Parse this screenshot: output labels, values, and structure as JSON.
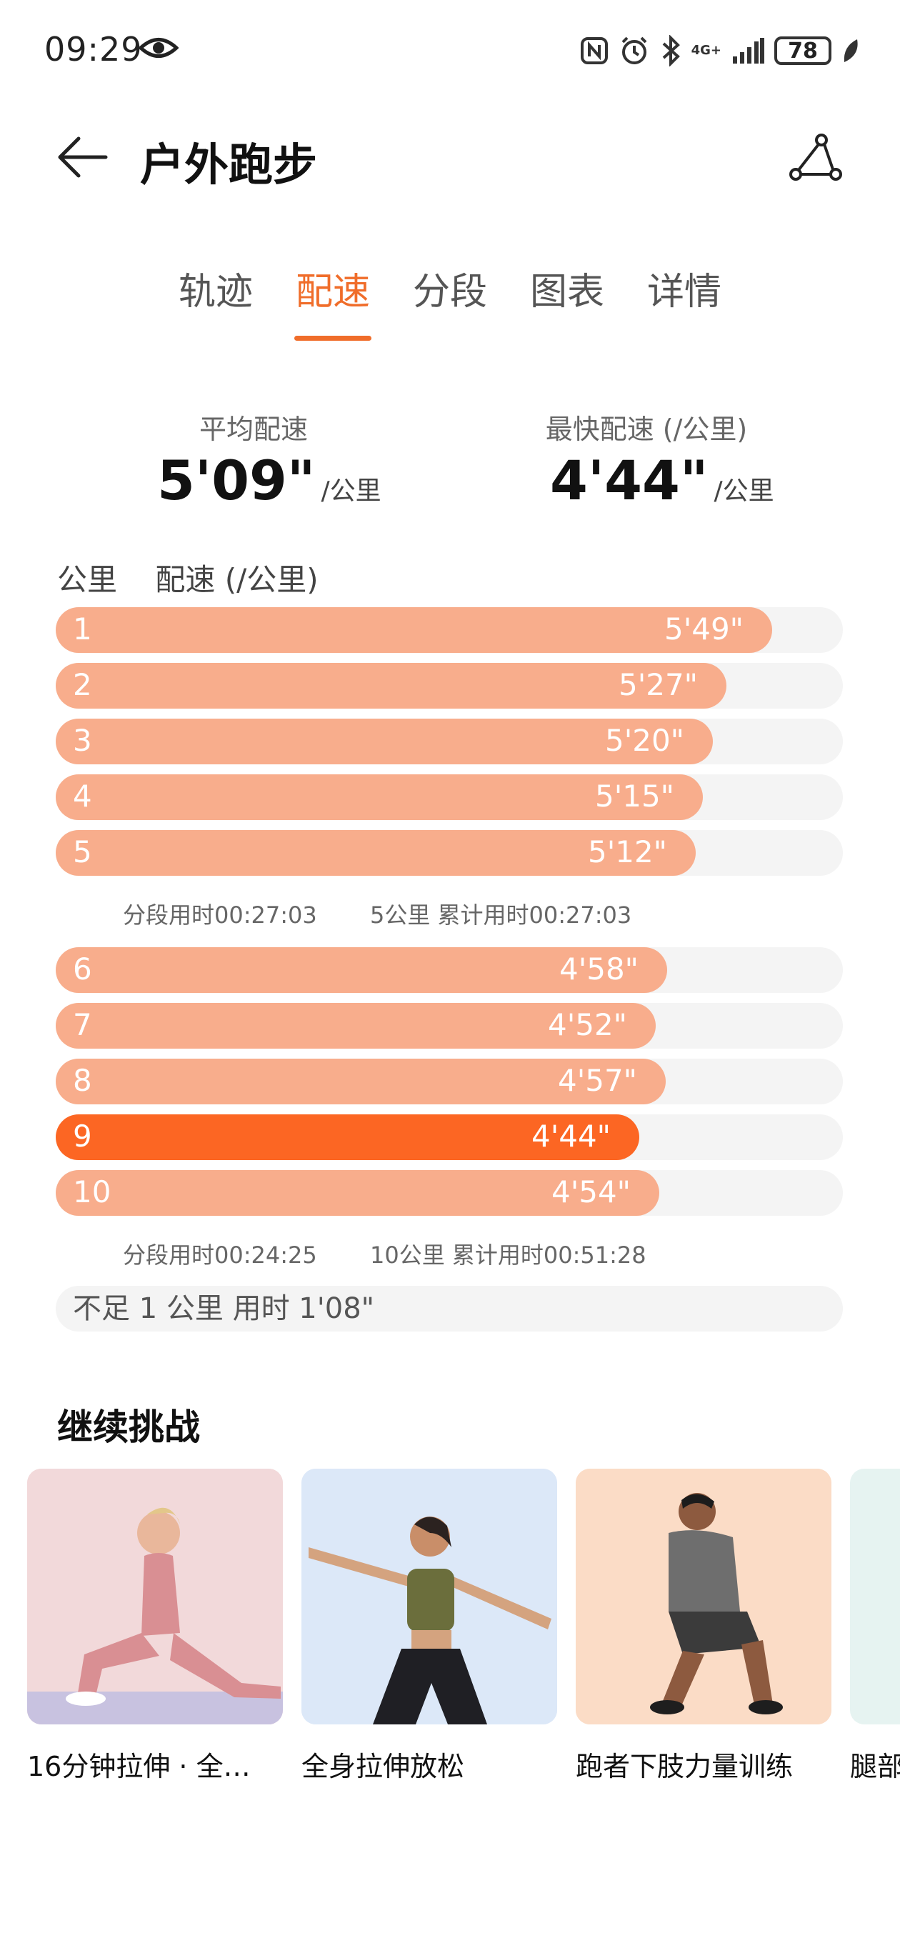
{
  "status": {
    "time": "09:29",
    "network": "4G+",
    "battery": "78"
  },
  "header": {
    "title": "户外跑步"
  },
  "tabs": [
    {
      "label": "轨迹",
      "active": false
    },
    {
      "label": "配速",
      "active": true
    },
    {
      "label": "分段",
      "active": false
    },
    {
      "label": "图表",
      "active": false
    },
    {
      "label": "详情",
      "active": false
    }
  ],
  "summary": {
    "avg": {
      "label": "平均配速",
      "value": "5'09\"",
      "unit": "/公里"
    },
    "fastest": {
      "label": "最快配速 (/公里)",
      "value": "4'44\"",
      "unit": "/公里"
    }
  },
  "table": {
    "col_km": "公里",
    "col_pace": "配速 (/公里)",
    "splits": [
      {
        "km": "1",
        "pace": "5'49\"",
        "fill": 0.91,
        "fastest": false
      },
      {
        "km": "2",
        "pace": "5'27\"",
        "fill": 0.852,
        "fastest": false
      },
      {
        "km": "3",
        "pace": "5'20\"",
        "fill": 0.835,
        "fastest": false
      },
      {
        "km": "4",
        "pace": "5'15\"",
        "fill": 0.822,
        "fastest": false
      },
      {
        "km": "5",
        "pace": "5'12\"",
        "fill": 0.813,
        "fastest": false
      },
      {
        "km": "6",
        "pace": "4'58\"",
        "fill": 0.777,
        "fastest": false
      },
      {
        "km": "7",
        "pace": "4'52\"",
        "fill": 0.762,
        "fastest": false
      },
      {
        "km": "8",
        "pace": "4'57\"",
        "fill": 0.775,
        "fastest": false
      },
      {
        "km": "9",
        "pace": "4'44\"",
        "fill": 0.741,
        "fastest": true
      },
      {
        "km": "10",
        "pace": "4'54\"",
        "fill": 0.767,
        "fastest": false
      }
    ],
    "segments": [
      {
        "seg_time": "分段用时00:27:03",
        "cumulative": "5公里 累计用时00:27:03"
      },
      {
        "seg_time": "分段用时00:24:25",
        "cumulative": "10公里 累计用时00:51:28"
      }
    ],
    "remainder": "不足 1 公里 用时 1'08\""
  },
  "challenge": {
    "title": "继续挑战",
    "cards": [
      {
        "title": "16分钟拉伸 · 全…"
      },
      {
        "title": "全身拉伸放松"
      },
      {
        "title": "跑者下肢力量训练"
      },
      {
        "title": "腿部"
      }
    ]
  },
  "colors": {
    "accent": "#f06d2a",
    "bar": "#f8ad8c",
    "bar_fastest": "#fc6623",
    "track": "#f4f4f4"
  }
}
